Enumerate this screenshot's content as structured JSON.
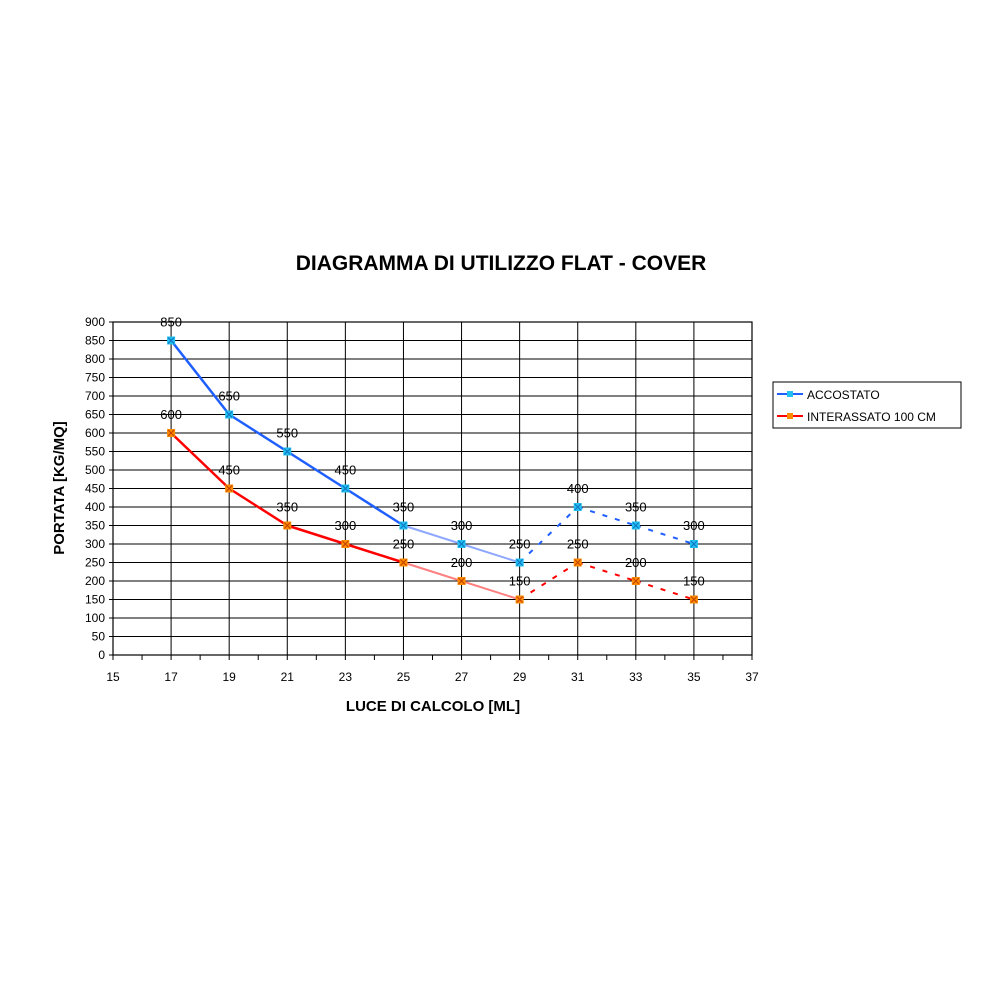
{
  "chart_data": {
    "type": "line",
    "title": "DIAGRAMMA DI UTILIZZO FLAT - COVER",
    "xlabel": "LUCE DI CALCOLO [ML]",
    "ylabel": "PORTATA [KG/MQ]",
    "xlim": [
      15,
      37
    ],
    "ylim": [
      0,
      900
    ],
    "xticks": [
      15,
      17,
      19,
      21,
      23,
      25,
      27,
      29,
      31,
      33,
      35,
      37
    ],
    "yticks": [
      0,
      50,
      100,
      150,
      200,
      250,
      300,
      350,
      400,
      450,
      500,
      550,
      600,
      650,
      700,
      750,
      800,
      850,
      900
    ],
    "grid": true,
    "legend_position": "right",
    "x": [
      17,
      19,
      21,
      23,
      25,
      27,
      29,
      31,
      33,
      35
    ],
    "series": [
      {
        "name": "ACCOSTATO",
        "values": [
          850,
          650,
          550,
          450,
          350,
          300,
          250,
          400,
          350,
          300
        ],
        "color": "#1f5fff",
        "light_color": "#8fa8ff",
        "marker_color": "#22c0f0"
      },
      {
        "name": "INTERASSATO 100 CM",
        "values": [
          600,
          450,
          350,
          300,
          250,
          200,
          150,
          250,
          200,
          150
        ],
        "color": "#ff0000",
        "light_color": "#ff8080",
        "marker_color": "#ff8c00"
      }
    ]
  }
}
